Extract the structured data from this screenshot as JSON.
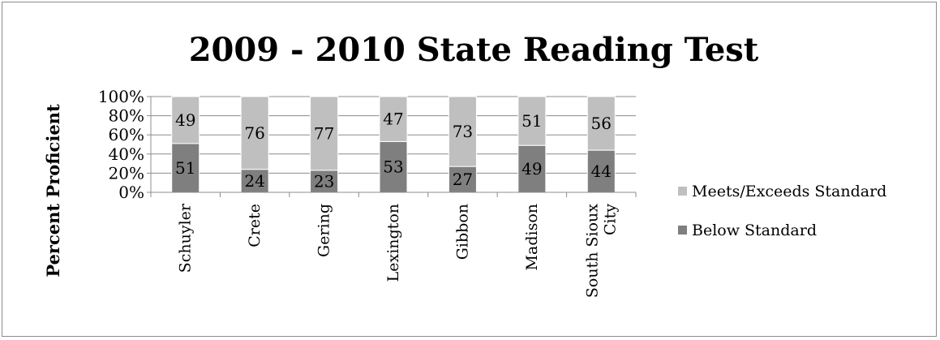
{
  "chart_data": {
    "type": "bar",
    "stacked": true,
    "title": "2009 - 2010 State Reading Test",
    "xlabel": "",
    "ylabel": "Percent Proficient",
    "ylim": [
      0,
      100
    ],
    "y_ticks": [
      "0%",
      "20%",
      "40%",
      "60%",
      "80%",
      "100%"
    ],
    "categories": [
      "Schuyler",
      "Crete",
      "Gering",
      "Lexington",
      "Gibbon",
      "Madison",
      "South Sioux City"
    ],
    "series": [
      {
        "name": "Below Standard",
        "color": "#7f7f7f",
        "values": [
          51,
          24,
          23,
          53,
          27,
          49,
          44
        ]
      },
      {
        "name": "Meets/Exceeds Standard",
        "color": "#bfbfbf",
        "values": [
          49,
          76,
          77,
          47,
          73,
          51,
          56
        ]
      }
    ],
    "legend_order": [
      "Meets/Exceeds Standard",
      "Below Standard"
    ],
    "legend_position": "right",
    "grid": true
  }
}
